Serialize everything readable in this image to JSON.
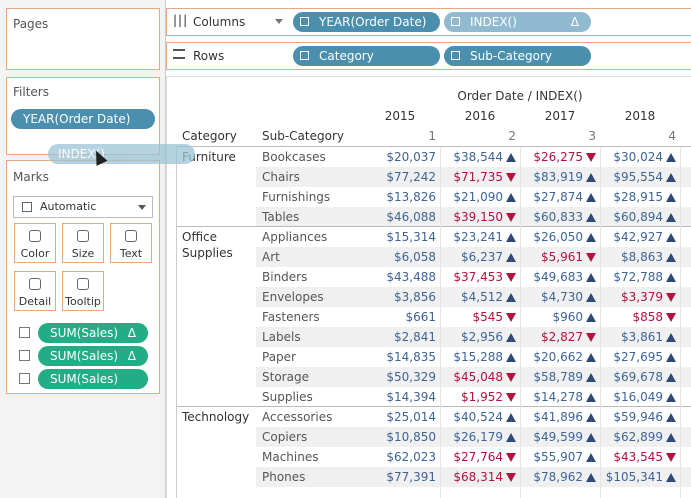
{
  "shelves": {
    "pages": "Pages",
    "filters": {
      "title": "Filters",
      "pills": [
        {
          "text": "YEAR(Order Date)"
        }
      ]
    },
    "columns": {
      "label": "Columns",
      "pills": [
        {
          "text": "YEAR(Order Date)"
        },
        {
          "text": "INDEX()",
          "badge": "Δ"
        }
      ]
    },
    "rows": {
      "label": "Rows",
      "pills": [
        {
          "text": "Category"
        },
        {
          "text": "Sub-Category"
        }
      ]
    }
  },
  "drag_pill": "INDEX()",
  "marks": {
    "title": "Marks",
    "mark_type": "Automatic",
    "buttons": [
      "Color",
      "Size",
      "Text",
      "Detail",
      "Tooltip"
    ],
    "pills": [
      {
        "text": "SUM(Sales)",
        "badge": "Δ"
      },
      {
        "text": "SUM(Sales)",
        "badge": "Δ"
      },
      {
        "text": "SUM(Sales)"
      }
    ]
  },
  "table": {
    "title": "Order Date / INDEX()",
    "years": [
      "2015",
      "2016",
      "2017",
      "2018"
    ],
    "indices": [
      "1",
      "2",
      "3",
      "4"
    ],
    "headers": [
      "Category",
      "Sub-Category"
    ],
    "groups": [
      {
        "category": "Furniture",
        "rows": [
          {
            "sub_category": "Bookcases",
            "cells": [
              "$20,037",
              "$38,544",
              "$26,275",
              "$30,024"
            ],
            "trends": [
              "up",
              "down",
              "up"
            ]
          },
          {
            "sub_category": "Chairs",
            "cells": [
              "$77,242",
              "$71,735",
              "$83,919",
              "$95,554"
            ],
            "trends": [
              "down",
              "up",
              "up"
            ]
          },
          {
            "sub_category": "Furnishings",
            "cells": [
              "$13,826",
              "$21,090",
              "$27,874",
              "$28,915"
            ],
            "trends": [
              "up",
              "up",
              "up"
            ]
          },
          {
            "sub_category": "Tables",
            "cells": [
              "$46,088",
              "$39,150",
              "$60,833",
              "$60,894"
            ],
            "trends": [
              "down",
              "up",
              "up"
            ]
          }
        ]
      },
      {
        "category": "Office Supplies",
        "rows": [
          {
            "sub_category": "Appliances",
            "cells": [
              "$15,314",
              "$23,241",
              "$26,050",
              "$42,927"
            ],
            "trends": [
              "up",
              "up",
              "up"
            ]
          },
          {
            "sub_category": "Art",
            "cells": [
              "$6,058",
              "$6,237",
              "$5,961",
              "$8,863"
            ],
            "trends": [
              "up",
              "down",
              "up"
            ]
          },
          {
            "sub_category": "Binders",
            "cells": [
              "$43,488",
              "$37,453",
              "$49,683",
              "$72,788"
            ],
            "trends": [
              "down",
              "up",
              "up"
            ]
          },
          {
            "sub_category": "Envelopes",
            "cells": [
              "$3,856",
              "$4,512",
              "$4,730",
              "$3,379"
            ],
            "trends": [
              "up",
              "up",
              "down"
            ]
          },
          {
            "sub_category": "Fasteners",
            "cells": [
              "$661",
              "$545",
              "$960",
              "$858"
            ],
            "trends": [
              "down",
              "up",
              "down"
            ]
          },
          {
            "sub_category": "Labels",
            "cells": [
              "$2,841",
              "$2,956",
              "$2,827",
              "$3,861"
            ],
            "trends": [
              "up",
              "down",
              "up"
            ]
          },
          {
            "sub_category": "Paper",
            "cells": [
              "$14,835",
              "$15,288",
              "$20,662",
              "$27,695"
            ],
            "trends": [
              "up",
              "up",
              "up"
            ]
          },
          {
            "sub_category": "Storage",
            "cells": [
              "$50,329",
              "$45,048",
              "$58,789",
              "$69,678"
            ],
            "trends": [
              "down",
              "up",
              "up"
            ]
          },
          {
            "sub_category": "Supplies",
            "cells": [
              "$14,394",
              "$1,952",
              "$14,278",
              "$16,049"
            ],
            "trends": [
              "down",
              "up",
              "up"
            ]
          }
        ]
      },
      {
        "category": "Technology",
        "rows": [
          {
            "sub_category": "Accessories",
            "cells": [
              "$25,014",
              "$40,524",
              "$41,896",
              "$59,946"
            ],
            "trends": [
              "up",
              "up",
              "up"
            ]
          },
          {
            "sub_category": "Copiers",
            "cells": [
              "$10,850",
              "$26,179",
              "$49,599",
              "$62,899"
            ],
            "trends": [
              "up",
              "up",
              "up"
            ]
          },
          {
            "sub_category": "Machines",
            "cells": [
              "$62,023",
              "$27,764",
              "$55,907",
              "$43,545"
            ],
            "trends": [
              "down",
              "up",
              "down"
            ]
          },
          {
            "sub_category": "Phones",
            "cells": [
              "$77,391",
              "$68,314",
              "$78,962",
              "$105,341"
            ],
            "trends": [
              "down",
              "up",
              "up"
            ]
          }
        ]
      }
    ]
  }
}
